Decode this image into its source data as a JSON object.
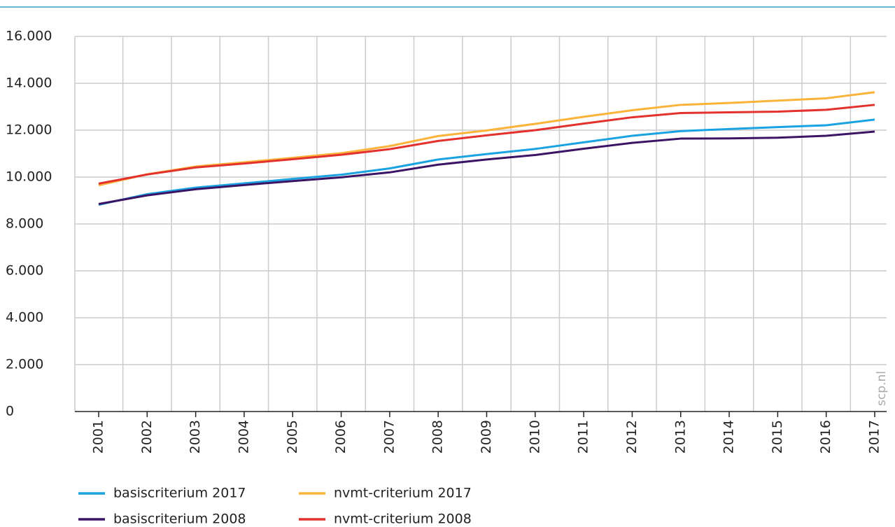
{
  "chart_data": {
    "type": "line",
    "source": "scp.nl",
    "categories": [
      "2001",
      "2002",
      "2003",
      "2004",
      "2005",
      "2006",
      "2007",
      "2008",
      "2009",
      "2010",
      "2011",
      "2012",
      "2013",
      "2014",
      "2015",
      "2016",
      "2017"
    ],
    "series": [
      {
        "name": "basiscriterium 2017",
        "color": "#1aa3e0",
        "values": [
          8820,
          9270,
          9550,
          9730,
          9920,
          10100,
          10370,
          10750,
          10980,
          11200,
          11480,
          11760,
          11960,
          12050,
          12130,
          12210,
          12450
        ]
      },
      {
        "name": "basiscriterium 2008",
        "color": "#3b1466",
        "values": [
          8850,
          9220,
          9480,
          9660,
          9830,
          9990,
          10200,
          10530,
          10750,
          10940,
          11210,
          11460,
          11640,
          11650,
          11680,
          11760,
          11940
        ]
      },
      {
        "name": "nvmt-criterium 2017",
        "color": "#fbb33a",
        "values": [
          9650,
          10120,
          10450,
          10630,
          10820,
          11020,
          11320,
          11750,
          11990,
          12270,
          12570,
          12850,
          13080,
          13160,
          13260,
          13360,
          13620
        ]
      },
      {
        "name": "nvmt-criterium 2008",
        "color": "#e3312d",
        "values": [
          9720,
          10110,
          10410,
          10580,
          10760,
          10950,
          11190,
          11540,
          11780,
          12000,
          12280,
          12550,
          12730,
          12760,
          12790,
          12870,
          13080
        ]
      }
    ],
    "ylim": [
      0,
      16000
    ],
    "yticks": [
      0,
      {
        "value": 2000,
        "label": "2.000"
      },
      {
        "value": 4000,
        "label": "4.000"
      },
      {
        "value": 6000,
        "label": "6.000"
      },
      {
        "value": 8000,
        "label": "8.000"
      },
      {
        "value": 10000,
        "label": "10.000"
      },
      {
        "value": 12000,
        "label": "12.000"
      },
      {
        "value": 14000,
        "label": "14.000"
      },
      {
        "value": 16000,
        "label": "16.000"
      }
    ],
    "grid": true
  }
}
